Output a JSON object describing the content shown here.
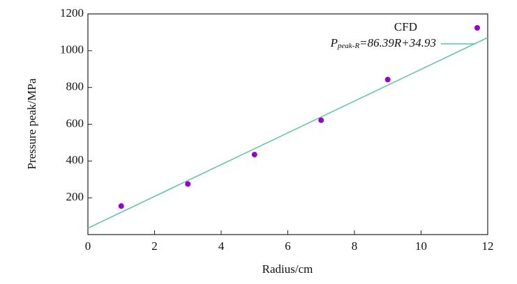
{
  "chart_data": {
    "type": "scatter",
    "xlabel": "Radius/cm",
    "ylabel": "Pressure peak/MPa",
    "xlim": [
      0,
      12
    ],
    "ylim": [
      0,
      1200
    ],
    "xticks": [
      0,
      2,
      4,
      6,
      8,
      10,
      12
    ],
    "yticks": [
      200,
      400,
      600,
      800,
      1000,
      1200
    ],
    "series": [
      {
        "name": "CFD",
        "color": "#9900cc",
        "x": [
          1,
          3,
          5,
          7,
          9
        ],
        "values": [
          155,
          275,
          435,
          622,
          843
        ]
      }
    ],
    "fit": {
      "color": "#5cc2a6",
      "slope": 86.39,
      "intercept": 34.93,
      "label_main": "P",
      "label_sub": "peak-R",
      "label_rest": "=86.39R+34.93"
    }
  }
}
